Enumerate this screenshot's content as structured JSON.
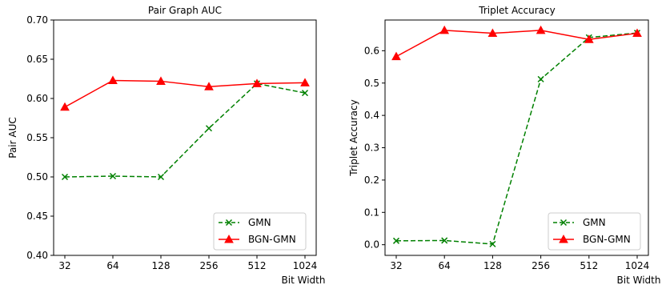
{
  "chart_data": [
    {
      "type": "line",
      "title": "Pair Graph AUC",
      "xlabel": "",
      "ylabel": "Pair AUC",
      "categories": [
        "32",
        "64",
        "128",
        "256",
        "512",
        "1024"
      ],
      "ylim": [
        0.4,
        0.7
      ],
      "yticks": [
        "0.40",
        "0.45",
        "0.50",
        "0.55",
        "0.60",
        "0.65",
        "0.70"
      ],
      "legend_position": "bottom-right",
      "grid": false,
      "series": [
        {
          "name": "GMN",
          "color": "#008000",
          "line_style": "dashed",
          "marker": "x",
          "values": [
            0.5,
            0.501,
            0.5,
            0.562,
            0.619,
            0.607
          ]
        },
        {
          "name": "BGN-GMN",
          "color": "#ff0000",
          "line_style": "solid",
          "marker": "triangle",
          "values": [
            0.589,
            0.623,
            0.622,
            0.615,
            0.619,
            0.62
          ]
        }
      ]
    },
    {
      "type": "line",
      "title": "Triplet Accuracy",
      "xlabel": "Bit Width",
      "ylabel": "Triplet Accuracy",
      "categories": [
        "32",
        "64",
        "128",
        "256",
        "512",
        "1024"
      ],
      "ylim": [
        -0.033,
        0.695
      ],
      "yticks": [
        "0.0",
        "0.1",
        "0.2",
        "0.3",
        "0.4",
        "0.5",
        "0.6"
      ],
      "legend_position": "bottom-right",
      "grid": false,
      "series": [
        {
          "name": "GMN",
          "color": "#008000",
          "line_style": "dashed",
          "marker": "x",
          "values": [
            0.012,
            0.013,
            0.002,
            0.512,
            0.641,
            0.655
          ]
        },
        {
          "name": "BGN-GMN",
          "color": "#ff0000",
          "line_style": "solid",
          "marker": "triangle",
          "values": [
            0.582,
            0.663,
            0.654,
            0.663,
            0.635,
            0.654
          ]
        }
      ]
    }
  ],
  "figure": {
    "xlabel_text": "Bit Width"
  }
}
